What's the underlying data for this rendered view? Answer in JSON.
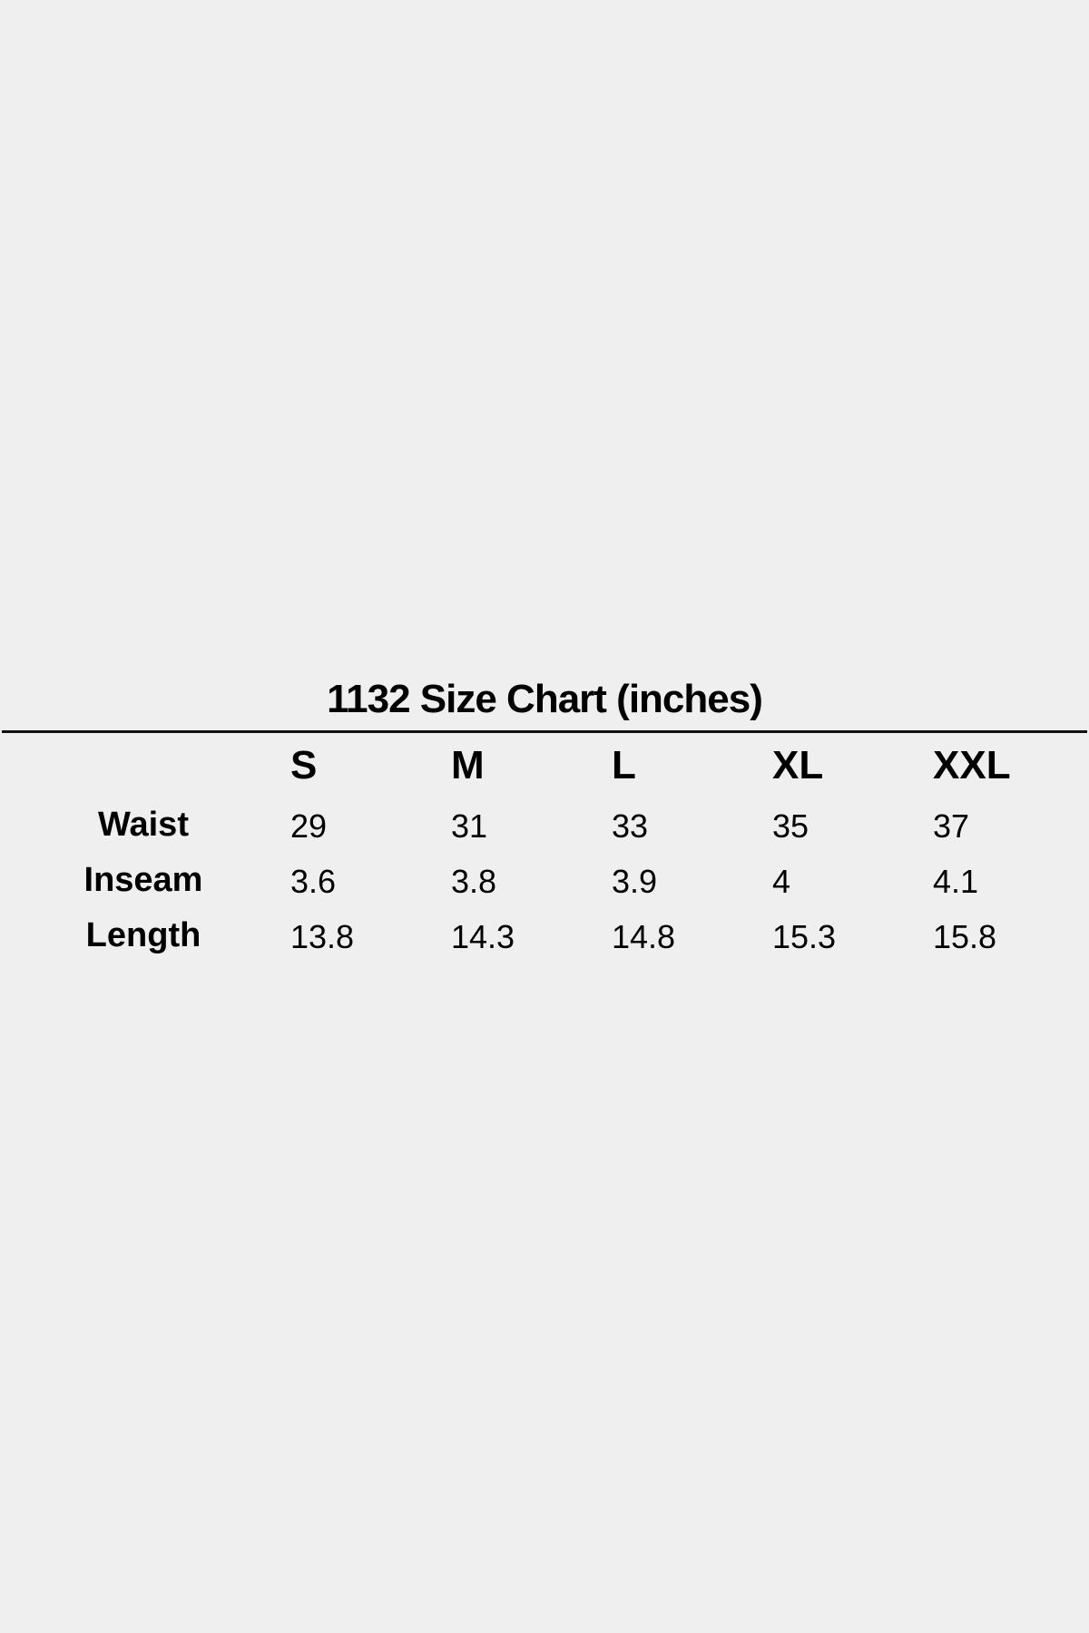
{
  "title": "1132 Size Chart (inches)",
  "sizes": [
    "S",
    "M",
    "L",
    "XL",
    "XXL"
  ],
  "rows": [
    {
      "label": "Waist",
      "values": [
        "29",
        "31",
        "33",
        "35",
        "37"
      ]
    },
    {
      "label": "Inseam",
      "values": [
        "3.6",
        "3.8",
        "3.9",
        "4",
        "4.1"
      ]
    },
    {
      "label": "Length",
      "values": [
        "13.8",
        "14.3",
        "14.8",
        "15.3",
        "15.8"
      ]
    }
  ]
}
